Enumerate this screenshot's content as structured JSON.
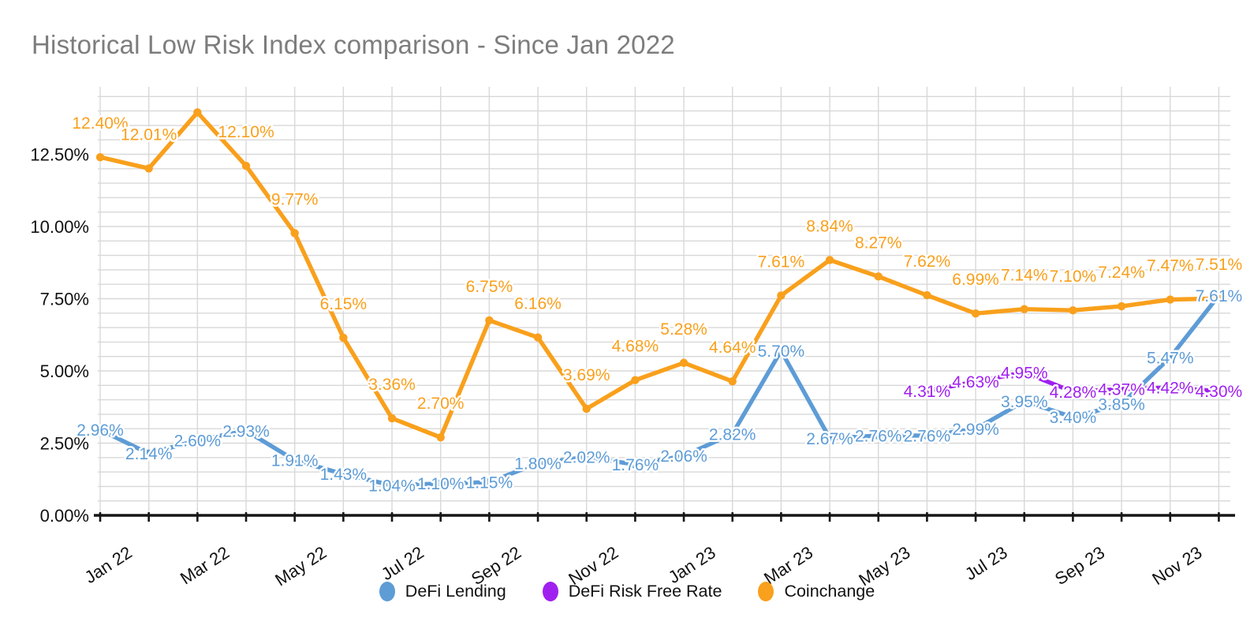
{
  "page": {
    "background": "#ffffff"
  },
  "chart_data": {
    "type": "line",
    "title": "Historical Low Risk Index comparison - Since Jan 2022",
    "title_color": "#7d7d7d",
    "grid_on": true,
    "grid_color": "#d8d8d8",
    "axis_color": "#161616",
    "text_color": "#111111",
    "x_categories": [
      "Jan 22",
      "Feb 22",
      "Mar 22",
      "Apr 22",
      "May 22",
      "Jun 22",
      "Jul 22",
      "Aug 22",
      "Sep 22",
      "Oct 22",
      "Nov 22",
      "Dec 22",
      "Jan 23",
      "Feb 23",
      "Mar 23",
      "Apr 23",
      "May 23",
      "Jun 23",
      "Jul 23",
      "Aug 23",
      "Sep 23",
      "Oct 23",
      "Nov 23",
      "Dec 23"
    ],
    "x_label_every": 2,
    "y_tick_labels": [
      "0.00%",
      "2.50%",
      "5.00%",
      "7.50%",
      "10.00%",
      "12.50%"
    ],
    "y_axis": {
      "min": 0,
      "max": 14.5,
      "major_step": 2.5,
      "minor_step": 0.5
    },
    "legend": {
      "position": "bottom"
    },
    "series": [
      {
        "name": "DeFi Lending",
        "color": "#5E9CD6",
        "start_index": 0,
        "label_placement": "center",
        "values": [
          2.96,
          2.14,
          2.6,
          2.93,
          1.91,
          1.43,
          1.04,
          1.1,
          1.15,
          1.8,
          2.02,
          1.76,
          2.06,
          2.82,
          5.7,
          2.67,
          2.76,
          2.76,
          2.99,
          3.95,
          3.4,
          3.85,
          5.47,
          7.61
        ],
        "labels": [
          "2.96%",
          "2.14%",
          "2.60%",
          "2.93%",
          "1.91%",
          "1.43%",
          "1.04%",
          "1.10%",
          "1.15%",
          "1.80%",
          "2.02%",
          "1.76%",
          "2.06%",
          "2.82%",
          "5.70%",
          "2.67%",
          "2.76%",
          "2.76%",
          "2.99%",
          "3.95%",
          "3.40%",
          "3.85%",
          "5.47%",
          "7.61%"
        ]
      },
      {
        "name": "DeFi Risk Free Rate",
        "color": "#A020F0",
        "start_index": 17,
        "label_placement": "center",
        "values": [
          4.31,
          4.63,
          4.95,
          4.28,
          4.37,
          4.42,
          4.3
        ],
        "labels": [
          "4.31%",
          "4.63%",
          "4.95%",
          "4.28%",
          "4.37%",
          "4.42%",
          "4.30%"
        ]
      },
      {
        "name": "Coinchange",
        "color": "#F9A01C",
        "start_index": 0,
        "label_placement": "above",
        "values": [
          12.4,
          12.01,
          13.95,
          12.1,
          9.77,
          6.15,
          3.36,
          2.7,
          6.75,
          6.16,
          3.69,
          4.68,
          5.28,
          4.64,
          7.61,
          8.84,
          8.27,
          7.62,
          6.99,
          7.14,
          7.1,
          7.24,
          7.47,
          7.51
        ],
        "labels": [
          "12.40%",
          "12.01%",
          null,
          "12.10%",
          "9.77%",
          "6.15%",
          "3.36%",
          "2.70%",
          "6.75%",
          "6.16%",
          "3.69%",
          "4.68%",
          "5.28%",
          "4.64%",
          "7.61%",
          "8.84%",
          "8.27%",
          "7.62%",
          "6.99%",
          "7.14%",
          "7.10%",
          "7.24%",
          "7.47%",
          "7.51%"
        ]
      }
    ]
  }
}
